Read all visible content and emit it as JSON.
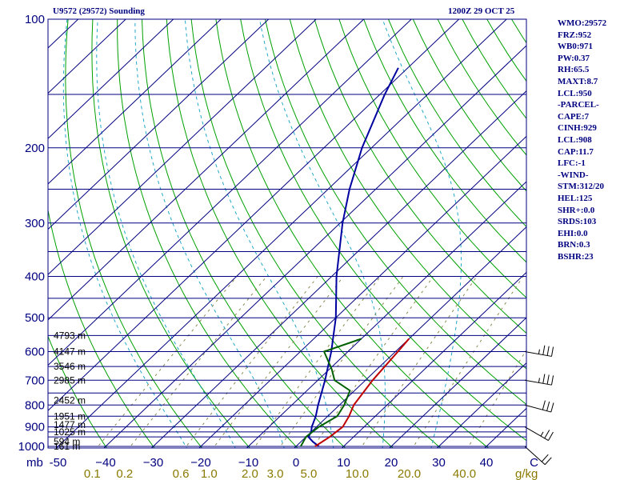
{
  "header": {
    "station": "U9572 (29572) Sounding",
    "time": "1200Z 29 OCT 25"
  },
  "indices": [
    "WMO:29572",
    "FRZ:952",
    "WB0:971",
    "PW:0.37",
    "RH:65.5",
    "MAXT:8.7",
    "LCL:950",
    "-PARCEL-",
    "CAPE:7",
    "CINH:929",
    "LCL:908",
    "CAP:11.7",
    "LFC:-1",
    "-WIND-",
    "STM:312/20",
    "HEL:125",
    "SHR+:0.0",
    "SRDS:103",
    "EHI:0.0",
    "BRN:0.3",
    "BSHR:23"
  ],
  "colors": {
    "axis": "#000080",
    "isobar": "#000080",
    "isotherm": "#000080",
    "dry_adiabat": "#00a000",
    "moist_adiabat": "#22a8c8",
    "mixing_ratio": "#8a8a50",
    "temperature": "#0000a0",
    "dewpoint": "#006000",
    "wetbulb": "#c00000",
    "wind": "#000000",
    "mixing_label": "#8a7a00"
  },
  "chart_data": {
    "type": "skew-t",
    "x_unit": "°C",
    "y_unit": "mb",
    "mixing_unit": "g/kg",
    "y_axis_corner_label": "mb",
    "p_range": [
      1000,
      100
    ],
    "t_range_at_1000": [
      -50,
      50
    ],
    "pressure_ticks": [
      {
        "value": 100,
        "label": "100"
      },
      {
        "value": 200,
        "label": "200"
      },
      {
        "value": 300,
        "label": "300"
      },
      {
        "value": 400,
        "label": "400"
      },
      {
        "value": 500,
        "label": "500"
      },
      {
        "value": 600,
        "label": "600"
      },
      {
        "value": 700,
        "label": "700"
      },
      {
        "value": 800,
        "label": "800"
      },
      {
        "value": 900,
        "label": "900"
      },
      {
        "value": 1000,
        "label": "1000"
      }
    ],
    "temp_ticks": [
      {
        "value": -50,
        "label": "-50"
      },
      {
        "value": -40,
        "label": "−40"
      },
      {
        "value": -30,
        "label": "−30"
      },
      {
        "value": -20,
        "label": "−20"
      },
      {
        "value": -10,
        "label": "−10"
      },
      {
        "value": 0,
        "label": "0"
      },
      {
        "value": 10,
        "label": "10"
      },
      {
        "value": 20,
        "label": "20"
      },
      {
        "value": 30,
        "label": "30"
      },
      {
        "value": 40,
        "label": "40"
      },
      {
        "value": 50,
        "label": "C"
      }
    ],
    "mixing_ratio_labels": [
      {
        "value": 0.1,
        "label": "0.1"
      },
      {
        "value": 0.2,
        "label": "0.2"
      },
      {
        "value": 0.6,
        "label": "0.6"
      },
      {
        "value": 1.0,
        "label": "1.0"
      },
      {
        "value": 2.0,
        "label": "2.0"
      },
      {
        "value": 3.0,
        "label": "3.0"
      },
      {
        "value": 5.0,
        "label": "5.0"
      },
      {
        "value": 10.0,
        "label": "10.0"
      },
      {
        "value": 20.0,
        "label": "20.0"
      },
      {
        "value": 40.0,
        "label": "40.0"
      }
    ],
    "height_labels": [
      {
        "p": 1000,
        "label": "161 m"
      },
      {
        "p": 975,
        "label": "594 m"
      },
      {
        "p": 925,
        "label": "1025 m"
      },
      {
        "p": 890,
        "label": "1477 m"
      },
      {
        "p": 850,
        "label": "1951 m"
      },
      {
        "p": 780,
        "label": "2452 m"
      },
      {
        "p": 700,
        "label": "2985 m"
      },
      {
        "p": 650,
        "label": "3546 m"
      },
      {
        "p": 600,
        "label": "4147 m"
      },
      {
        "p": 550,
        "label": "4793 m"
      }
    ],
    "series": [
      {
        "name": "temperature",
        "points": [
          [
            1000,
            4.8
          ],
          [
            975,
            2.5
          ],
          [
            950,
            0.5
          ],
          [
            925,
            0.0
          ],
          [
            900,
            -1.0
          ],
          [
            850,
            -2.5
          ],
          [
            800,
            -4.5
          ],
          [
            700,
            -8.5
          ],
          [
            600,
            -13.5
          ],
          [
            500,
            -20.0
          ],
          [
            400,
            -29.0
          ],
          [
            300,
            -39.5
          ],
          [
            250,
            -45.5
          ],
          [
            200,
            -52.0
          ],
          [
            150,
            -59.0
          ],
          [
            130,
            -62.0
          ]
        ]
      },
      {
        "name": "dewpoint",
        "points": [
          [
            1000,
            1.0
          ],
          [
            950,
            0.0
          ],
          [
            900,
            0.5
          ],
          [
            850,
            2.0
          ],
          [
            800,
            1.0
          ],
          [
            740,
            -1.0
          ],
          [
            700,
            -6.5
          ],
          [
            660,
            -9.5
          ],
          [
            600,
            -15.0
          ],
          [
            560,
            -10.0
          ]
        ]
      },
      {
        "name": "wetbulb",
        "points": [
          [
            1000,
            4.0
          ],
          [
            950,
            5.0
          ],
          [
            900,
            5.5
          ],
          [
            850,
            4.5
          ],
          [
            800,
            3.0
          ],
          [
            700,
            1.5
          ],
          [
            600,
            0.5
          ],
          [
            560,
            0.0
          ]
        ]
      }
    ],
    "wind_barbs": [
      {
        "p": 1000,
        "dir": 312,
        "speed": 20
      },
      {
        "p": 900,
        "dir": 300,
        "speed": 25
      },
      {
        "p": 800,
        "dir": 285,
        "speed": 30
      },
      {
        "p": 700,
        "dir": 280,
        "speed": 35
      },
      {
        "p": 600,
        "dir": 280,
        "speed": 35
      }
    ]
  }
}
